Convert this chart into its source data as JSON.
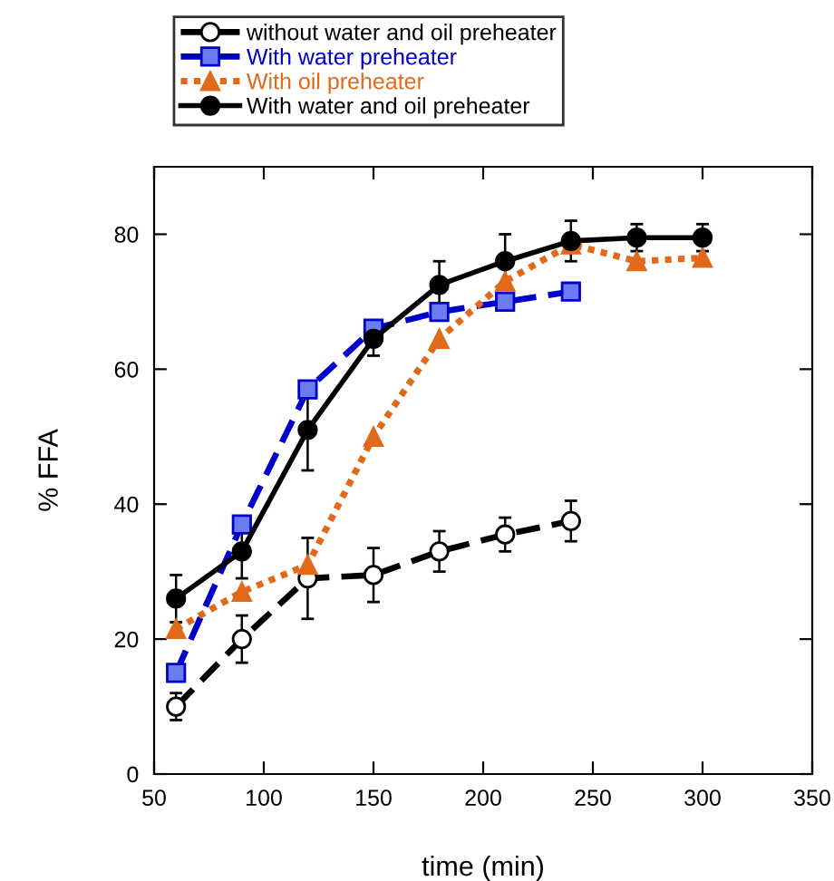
{
  "chart_data": {
    "type": "line",
    "xlabel": "time (min)",
    "ylabel": "% FFA",
    "xlim": [
      50,
      350
    ],
    "xticks": [
      50,
      100,
      150,
      200,
      250,
      300,
      350
    ],
    "ylim": [
      0,
      90
    ],
    "yticks": [
      0,
      20,
      40,
      60,
      80
    ],
    "grid": false,
    "legend": "top",
    "series": [
      {
        "name": "without water and oil preheater",
        "color": "#000000",
        "marker": "circle",
        "line_style": "dashed",
        "x": [
          60,
          90,
          120,
          150,
          180,
          210,
          240
        ],
        "values": [
          10,
          20,
          29,
          29.5,
          33,
          35.5,
          37.5
        ],
        "errors": [
          2,
          3.5,
          6,
          4,
          3,
          2.5,
          3
        ]
      },
      {
        "name": "With water preheater",
        "color": "#0000cc",
        "marker": "square",
        "line_style": "dashed",
        "x": [
          60,
          90,
          120,
          150,
          180,
          210,
          240
        ],
        "values": [
          15,
          37,
          57,
          66,
          68.5,
          70,
          71.5
        ]
      },
      {
        "name": "With oil preheater",
        "color": "#e06a1a",
        "marker": "triangle",
        "line_style": "dotted",
        "x": [
          60,
          90,
          120,
          150,
          180,
          210,
          240,
          270,
          300
        ],
        "values": [
          21.5,
          27,
          31,
          50,
          64.5,
          73,
          78.5,
          76,
          76.5
        ]
      },
      {
        "name": "With water and oil preheater",
        "color": "#000000",
        "marker": "circle",
        "line_style": "solid",
        "x": [
          60,
          90,
          120,
          150,
          180,
          210,
          240,
          270,
          300
        ],
        "values": [
          26,
          33,
          51,
          64.5,
          72.5,
          76,
          79,
          79.5,
          79.5
        ],
        "errors": [
          3.5,
          4,
          6,
          2.5,
          3.5,
          4,
          3,
          2,
          2
        ]
      }
    ]
  }
}
